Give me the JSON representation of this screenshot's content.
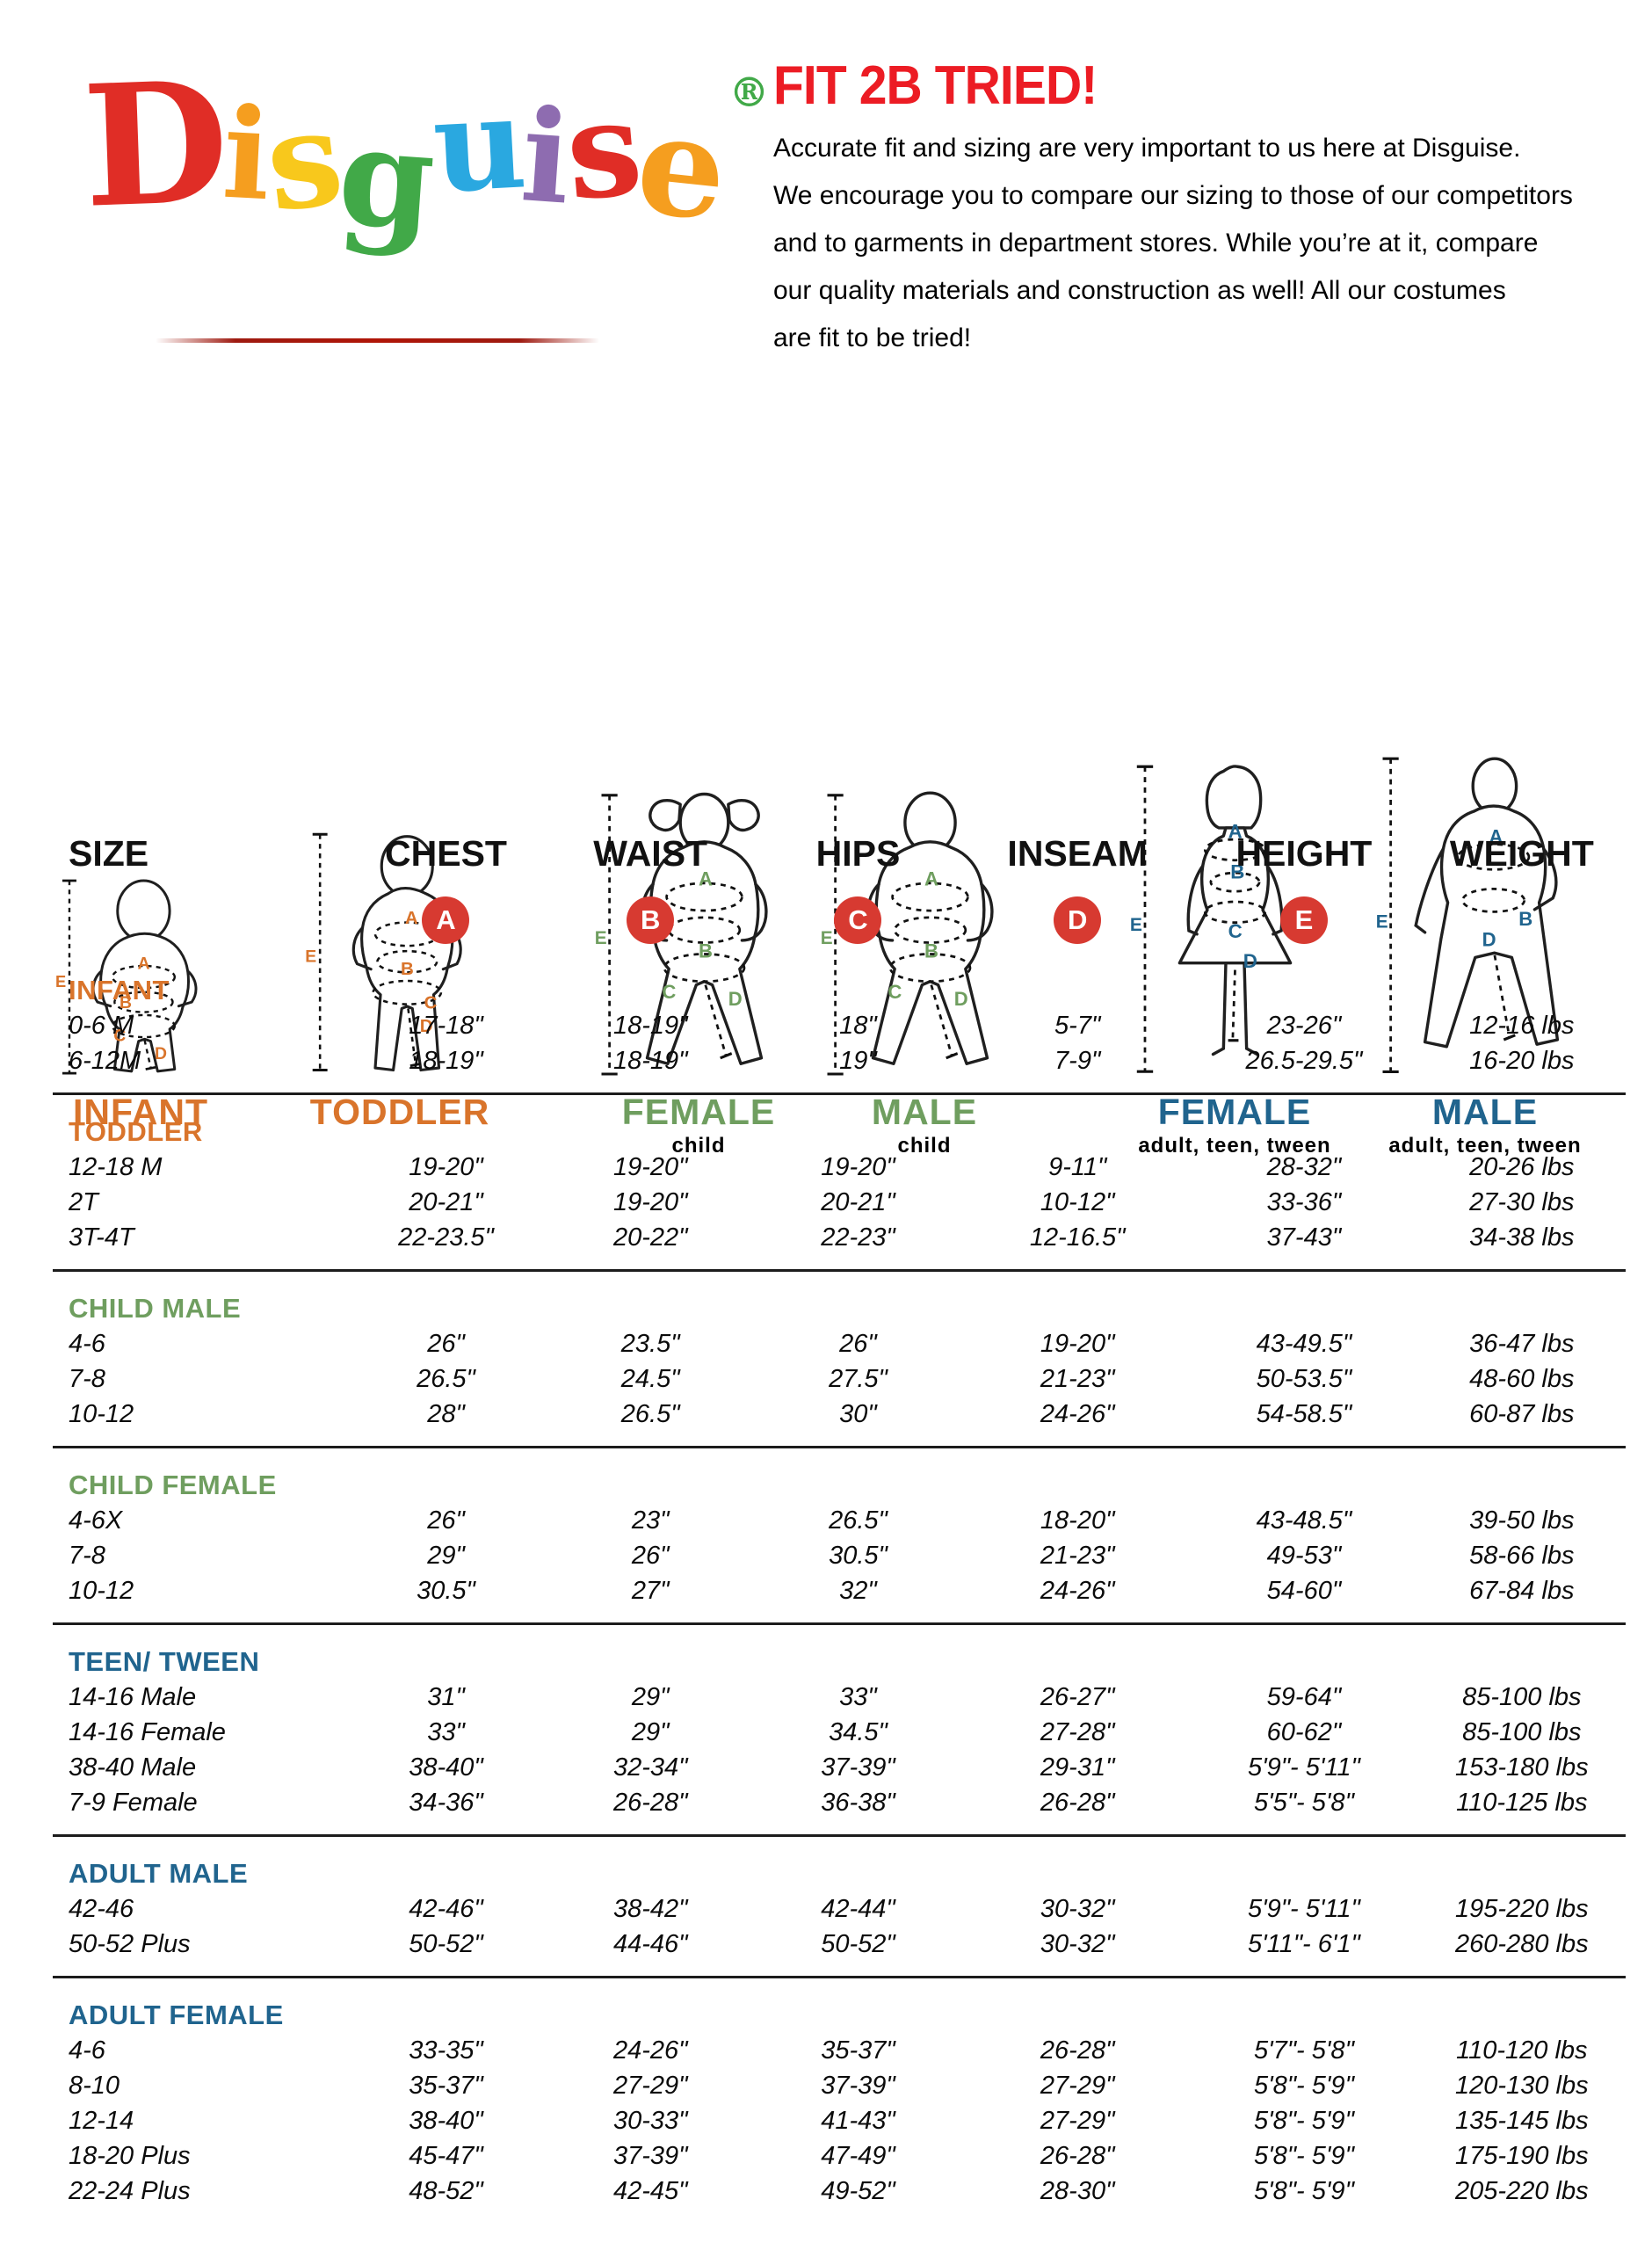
{
  "logo": {
    "letters": [
      {
        "ch": "D",
        "color": "#e02d26"
      },
      {
        "ch": "i",
        "color": "#f59e1f"
      },
      {
        "ch": "s",
        "color": "#f8c81c"
      },
      {
        "ch": "g",
        "color": "#41a948"
      },
      {
        "ch": "u",
        "color": "#2aa8e0"
      },
      {
        "ch": "i",
        "color": "#8e6cb0"
      },
      {
        "ch": "s",
        "color": "#e02d26"
      },
      {
        "ch": "e",
        "color": "#f59e1f"
      }
    ],
    "registered": "®",
    "registered_color": "#41a948"
  },
  "header": {
    "title": "FIT 2B TRIED!",
    "title_color": "#ec1c24",
    "lines": [
      "Accurate fit and sizing are very important to us here at Disguise.",
      "We encourage you to compare our sizing to those of our competitors",
      "and to garments in department stores. While you’re at it, compare",
      "our quality materials and construction as well! All our costumes",
      "are fit to be tried!"
    ]
  },
  "measure_letters": [
    "A",
    "B",
    "C",
    "D",
    "E"
  ],
  "figures": [
    {
      "label": "INFANT",
      "sublabel": "",
      "color": "#d9742b"
    },
    {
      "label": "TODDLER",
      "sublabel": "",
      "color": "#d9742b"
    },
    {
      "label": "FEMALE",
      "sublabel": "child",
      "color": "#6f9e5f"
    },
    {
      "label": "MALE",
      "sublabel": "child",
      "color": "#6f9e5f"
    },
    {
      "label": "FEMALE",
      "sublabel": "adult, teen, tween",
      "color": "#20648e"
    },
    {
      "label": "MALE",
      "sublabel": "adult, teen, tween",
      "color": "#20648e"
    }
  ],
  "table": {
    "columns": [
      "SIZE",
      "CHEST",
      "WAIST",
      "HIPS",
      "INSEAM",
      "HEIGHT",
      "WEIGHT"
    ],
    "letter_circles": {
      "color": "#d73a31",
      "letters": [
        "A",
        "B",
        "C",
        "D",
        "E"
      ]
    },
    "divider_color": "#1c1c1c",
    "sections": [
      {
        "name": "INFANT",
        "color": "#d9742b",
        "rows": [
          [
            "0-6 M",
            "17-18\"",
            "18-19\"",
            "18\"",
            "5-7\"",
            "23-26\"",
            "12-16 lbs"
          ],
          [
            "6-12M",
            "18-19\"",
            "18-19\"",
            "19\"",
            "7-9\"",
            "26.5-29.5\"",
            "16-20 lbs"
          ]
        ]
      },
      {
        "name": "TODDLER",
        "color": "#d9742b",
        "rows": [
          [
            "12-18 M",
            "19-20\"",
            "19-20\"",
            "19-20\"",
            "9-11\"",
            "28-32\"",
            "20-26 lbs"
          ],
          [
            "2T",
            "20-21\"",
            "19-20\"",
            "20-21\"",
            "10-12\"",
            "33-36\"",
            "27-30 lbs"
          ],
          [
            "3T-4T",
            "22-23.5\"",
            "20-22\"",
            "22-23\"",
            "12-16.5\"",
            "37-43\"",
            "34-38 lbs"
          ]
        ]
      },
      {
        "name": "CHILD MALE",
        "color": "#6f9e5f",
        "rows": [
          [
            "4-6",
            "26\"",
            "23.5\"",
            "26\"",
            "19-20\"",
            "43-49.5\"",
            "36-47 lbs"
          ],
          [
            "7-8",
            "26.5\"",
            "24.5\"",
            "27.5\"",
            "21-23\"",
            "50-53.5\"",
            "48-60 lbs"
          ],
          [
            "10-12",
            "28\"",
            "26.5\"",
            "30\"",
            "24-26\"",
            "54-58.5\"",
            "60-87 lbs"
          ]
        ]
      },
      {
        "name": "CHILD FEMALE",
        "color": "#6f9e5f",
        "rows": [
          [
            "4-6X",
            "26\"",
            "23\"",
            "26.5\"",
            "18-20\"",
            "43-48.5\"",
            "39-50 lbs"
          ],
          [
            "7-8",
            "29\"",
            "26\"",
            "30.5\"",
            "21-23\"",
            "49-53\"",
            "58-66 lbs"
          ],
          [
            "10-12",
            "30.5\"",
            "27\"",
            "32\"",
            "24-26\"",
            "54-60\"",
            "67-84 lbs"
          ]
        ]
      },
      {
        "name": "TEEN/ TWEEN",
        "color": "#20648e",
        "rows": [
          [
            "14-16 Male",
            "31\"",
            "29\"",
            "33\"",
            "26-27\"",
            "59-64\"",
            "85-100 lbs"
          ],
          [
            "14-16 Female",
            "33\"",
            "29\"",
            "34.5\"",
            "27-28\"",
            "60-62\"",
            "85-100 lbs"
          ],
          [
            "38-40 Male",
            "38-40\"",
            "32-34\"",
            "37-39\"",
            "29-31\"",
            "5'9\"- 5'11\"",
            "153-180 lbs"
          ],
          [
            "7-9 Female",
            "34-36\"",
            "26-28\"",
            "36-38\"",
            "26-28\"",
            "5'5\"- 5'8\"",
            "110-125 lbs"
          ]
        ]
      },
      {
        "name": "ADULT MALE",
        "color": "#20648e",
        "rows": [
          [
            "42-46",
            "42-46\"",
            "38-42\"",
            "42-44\"",
            "30-32\"",
            "5'9\"- 5'11\"",
            "195-220 lbs"
          ],
          [
            "50-52 Plus",
            "50-52\"",
            "44-46\"",
            "50-52\"",
            "30-32\"",
            "5'11\"- 6'1\"",
            "260-280 lbs"
          ]
        ]
      },
      {
        "name": "ADULT FEMALE",
        "color": "#20648e",
        "rows": [
          [
            "4-6",
            "33-35\"",
            "24-26\"",
            "35-37\"",
            "26-28\"",
            "5'7\"- 5'8\"",
            "110-120 lbs"
          ],
          [
            "8-10",
            "35-37\"",
            "27-29\"",
            "37-39\"",
            "27-29\"",
            "5'8\"- 5'9\"",
            "120-130 lbs"
          ],
          [
            "12-14",
            "38-40\"",
            "30-33\"",
            "41-43\"",
            "27-29\"",
            "5'8\"- 5'9\"",
            "135-145 lbs"
          ],
          [
            "18-20 Plus",
            "45-47\"",
            "37-39\"",
            "47-49\"",
            "26-28\"",
            "5'8\"- 5'9\"",
            "175-190 lbs"
          ],
          [
            "22-24 Plus",
            "48-52\"",
            "42-45\"",
            "49-52\"",
            "28-30\"",
            "5'8\"- 5'9\"",
            "205-220 lbs"
          ]
        ]
      }
    ]
  }
}
